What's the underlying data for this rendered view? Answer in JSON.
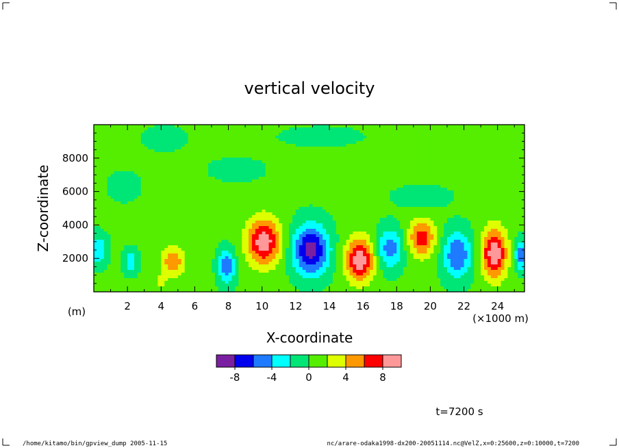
{
  "chart_data": {
    "type": "heatmap",
    "title": "vertical velocity",
    "xlabel": "X-coordinate",
    "ylabel": "Z-coordinate",
    "x_unit_label": "(×1000 m)",
    "y_unit_label": "(m)",
    "xlim": [
      0,
      25.6
    ],
    "ylim": [
      0,
      10000
    ],
    "x_ticks": [
      "2",
      "4",
      "6",
      "8",
      "10",
      "12",
      "14",
      "16",
      "18",
      "20",
      "22",
      "24"
    ],
    "x_tick_values": [
      2,
      4,
      6,
      8,
      10,
      12,
      14,
      16,
      18,
      20,
      22,
      24
    ],
    "y_ticks": [
      "2000",
      "4000",
      "6000",
      "8000"
    ],
    "y_tick_values": [
      2000,
      4000,
      6000,
      8000
    ],
    "colorbar": {
      "levels": [
        -10,
        -8,
        -6,
        -4,
        -2,
        0,
        2,
        4,
        6,
        8,
        10
      ],
      "tick_labels": [
        "-8",
        "-4",
        "0",
        "4",
        "8"
      ],
      "tick_values": [
        -8,
        -4,
        0,
        4,
        8
      ],
      "colors": [
        "#7b1fa2",
        "#0000ee",
        "#1e7bff",
        "#00ffff",
        "#00e676",
        "#55ee00",
        "#ddff00",
        "#ff9900",
        "#ff0000",
        "#ff9999"
      ]
    },
    "field": {
      "background": 0.4,
      "cells": [
        {
          "x": 0.25,
          "z": 2500,
          "amp": -4.2,
          "sx": 0.55,
          "sz": 900
        },
        {
          "x": 2.2,
          "z": 1800,
          "amp": -3.6,
          "sx": 0.45,
          "sz": 700
        },
        {
          "x": 4.7,
          "z": 1800,
          "amp": 5.2,
          "sx": 0.7,
          "sz": 900
        },
        {
          "x": 4.0,
          "z": 600,
          "amp": 2.5,
          "sx": 0.3,
          "sz": 400
        },
        {
          "x": 7.9,
          "z": 1500,
          "amp": -6.2,
          "sx": 0.5,
          "sz": 1000
        },
        {
          "x": 10.1,
          "z": 3000,
          "amp": 9.0,
          "sx": 1.0,
          "sz": 1400
        },
        {
          "x": 12.9,
          "z": 2500,
          "amp": -9.4,
          "sx": 1.05,
          "sz": 1500
        },
        {
          "x": 15.8,
          "z": 1900,
          "amp": 9.0,
          "sx": 0.85,
          "sz": 1300
        },
        {
          "x": 17.6,
          "z": 2600,
          "amp": -5.6,
          "sx": 0.75,
          "sz": 1200
        },
        {
          "x": 19.5,
          "z": 3200,
          "amp": 6.8,
          "sx": 0.8,
          "sz": 1100
        },
        {
          "x": 21.6,
          "z": 2200,
          "amp": -6.4,
          "sx": 0.85,
          "sz": 1400
        },
        {
          "x": 23.8,
          "z": 2300,
          "amp": 9.2,
          "sx": 0.75,
          "sz": 1500
        },
        {
          "x": 25.4,
          "z": 2200,
          "amp": -6.2,
          "sx": 0.35,
          "sz": 900
        },
        {
          "x": 4.2,
          "z": 9200,
          "amp": -1.6,
          "sx": 1.2,
          "sz": 700
        },
        {
          "x": 13.5,
          "z": 9300,
          "amp": -1.2,
          "sx": 2.5,
          "sz": 600
        },
        {
          "x": 19.5,
          "z": 5700,
          "amp": -1.3,
          "sx": 1.8,
          "sz": 700
        },
        {
          "x": 8.5,
          "z": 7300,
          "amp": -1.4,
          "sx": 1.6,
          "sz": 700
        },
        {
          "x": 1.8,
          "z": 6300,
          "amp": -1.3,
          "sx": 1.0,
          "sz": 900
        }
      ]
    }
  },
  "annotations": {
    "time_label": "t=7200 s",
    "footer_left": "/home/kitamo/bin/gpview_dump  2005-11-15",
    "footer_right": "nc/arare-odaka1998-dx200-20051114.nc@VelZ,x=0:25600,z=0:10000,t=7200"
  }
}
